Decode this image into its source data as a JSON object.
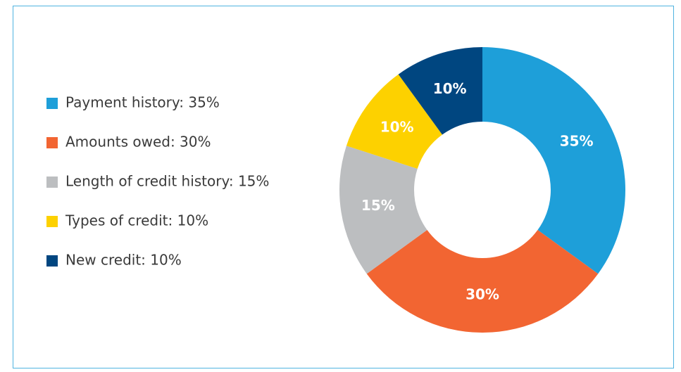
{
  "chart_data": {
    "type": "pie",
    "categories": [
      "Payment history: 35%",
      "Amounts owed: 30%",
      "Length of credit history: 15%",
      "Types of credit: 10%",
      "New credit: 10%"
    ],
    "values": [
      35,
      30,
      15,
      10,
      10
    ],
    "value_labels": [
      "35%",
      "30%",
      "15%",
      "10%",
      "10%"
    ],
    "colors": [
      "#1e9fd9",
      "#f26532",
      "#bcbec0",
      "#fdd100",
      "#004680"
    ],
    "donut": true,
    "legend": "left"
  }
}
